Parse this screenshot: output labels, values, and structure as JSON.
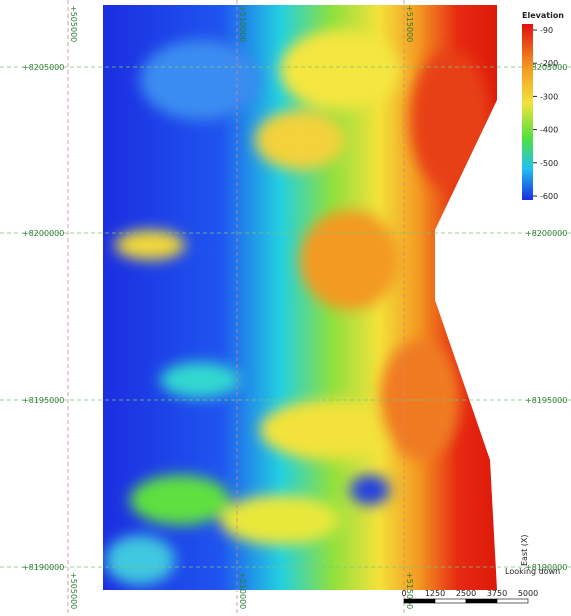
{
  "legend": {
    "title": "Elevation",
    "ticks": [
      -90,
      -200,
      -300,
      -400,
      -500,
      -600
    ]
  },
  "grid": {
    "northings": [
      "+8205000",
      "+8200000",
      "+8195000",
      "+8190000"
    ],
    "eastings_top": [
      "+505000",
      "+510000",
      "+515000"
    ],
    "eastings_bottom": [
      "+505000",
      "+510000",
      "+515000"
    ]
  },
  "scale_bar": {
    "ticks": [
      0,
      1250,
      2500,
      3750,
      5000
    ]
  },
  "labels": {
    "view": "Looking down",
    "axis": "East (X)"
  }
}
